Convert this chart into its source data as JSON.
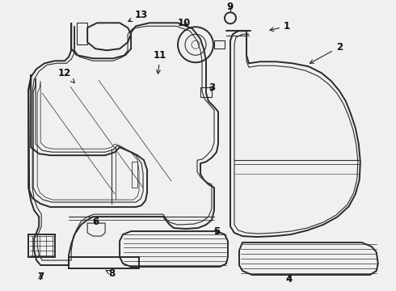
{
  "bg_color": "#f0f0f0",
  "line_color": "#2a2a2a",
  "label_color": "#111111",
  "lw_main": 1.4,
  "lw_thin": 0.8,
  "lw_hair": 0.5,
  "figsize": [
    4.9,
    3.6
  ],
  "dpi": 100,
  "xlim": [
    0,
    490
  ],
  "ylim": [
    0,
    360
  ]
}
